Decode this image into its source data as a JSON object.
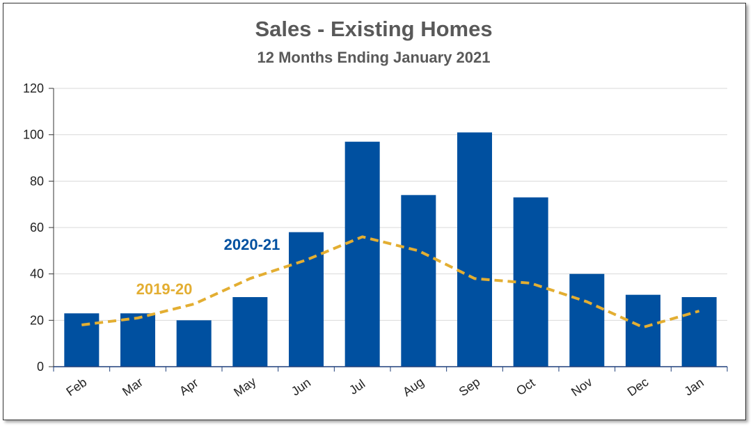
{
  "chart_data": {
    "type": "bar",
    "title": "Sales - Existing Homes",
    "subtitle": "12 Months Ending January 2021",
    "categories": [
      "Feb",
      "Mar",
      "Apr",
      "May",
      "Jun",
      "Jul",
      "Aug",
      "Sep",
      "Oct",
      "Nov",
      "Dec",
      "Jan"
    ],
    "series": [
      {
        "name": "2020-21",
        "type": "bar",
        "color": "#0050A0",
        "values": [
          23,
          23,
          20,
          30,
          58,
          97,
          74,
          101,
          73,
          40,
          31,
          30
        ]
      },
      {
        "name": "2019-20",
        "type": "line",
        "style": "dashed",
        "color": "#E3AE32",
        "values": [
          18,
          21,
          27,
          38,
          46,
          56,
          50,
          38,
          36,
          28,
          17,
          24
        ]
      }
    ],
    "yticks": [
      0,
      20,
      40,
      60,
      80,
      100,
      120
    ],
    "ylim": [
      0,
      120
    ],
    "grid": true,
    "xlabel": "",
    "ylabel": ""
  }
}
